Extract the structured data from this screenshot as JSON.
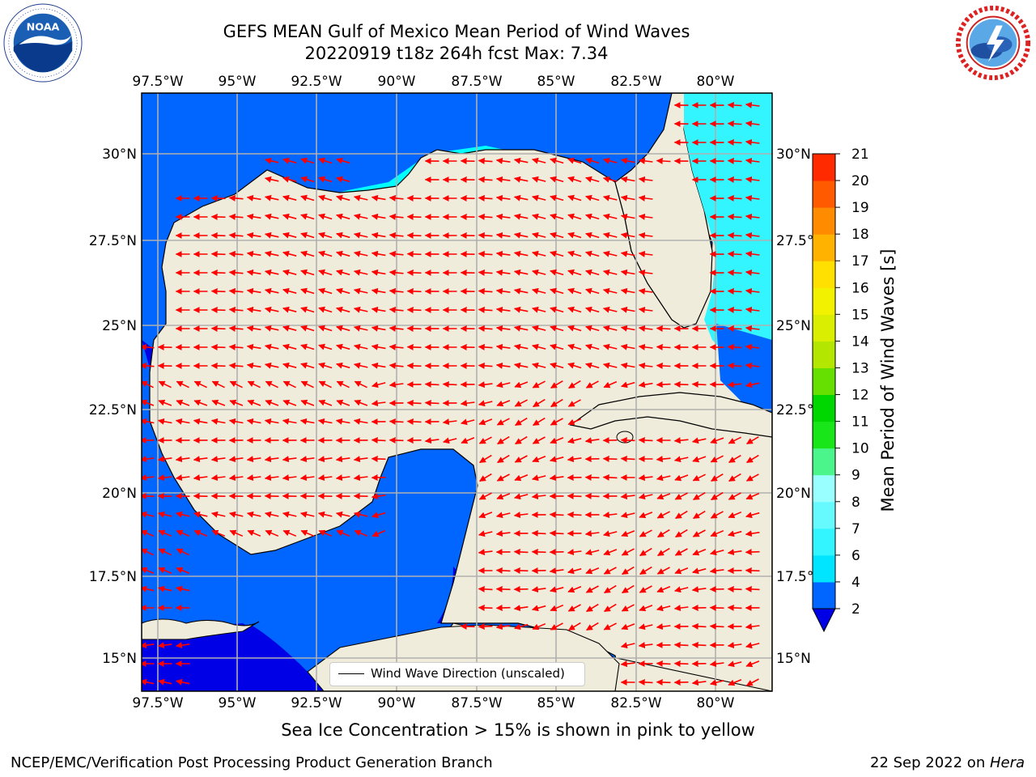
{
  "header": {
    "title_line1": "GEFS MEAN Gulf of Mexico Mean Period of Wind Waves",
    "title_line2": "20220919 t18z 264h fcst   Max: 7.34"
  },
  "logos": {
    "left": "noaa-logo",
    "right": "national-weather-service-logo"
  },
  "map": {
    "x_ticks": [
      "97.5°W",
      "95°W",
      "92.5°W",
      "90°W",
      "87.5°W",
      "85°W",
      "82.5°W",
      "80°W"
    ],
    "y_ticks": [
      "30°N",
      "27.5°N",
      "25°N",
      "22.5°N",
      "20°N",
      "17.5°N",
      "15°N"
    ],
    "legend_label": "Wind Wave Direction (unscaled)",
    "lon_range": [
      -98,
      -78
    ],
    "lat_range": [
      14,
      31.5
    ],
    "land_color": "#efecdb",
    "arrow_color": "#ff0000"
  },
  "colorbar": {
    "label": "Mean Period of Wind Waves [s]",
    "levels": [
      "2",
      "4",
      "6",
      "7",
      "8",
      "9",
      "10",
      "11",
      "12",
      "13",
      "14",
      "15",
      "16",
      "17",
      "18",
      "19",
      "20",
      "21"
    ],
    "colors": [
      "#0066ff",
      "#00e5ff",
      "#33f5ff",
      "#66faff",
      "#99ffff",
      "#4cf58c",
      "#19e619",
      "#00d600",
      "#66e000",
      "#b3e600",
      "#d9ee00",
      "#f2f200",
      "#ffe000",
      "#ffb300",
      "#ff8c00",
      "#ff5a00",
      "#ff2a00"
    ],
    "extend_color": "#0000e6"
  },
  "footer": {
    "sea_ice_note": "Sea Ice Concentration > 15% is shown in pink to yellow",
    "branch": "NCEP/EMC/Verification Post Processing Product Generation Branch",
    "date": "22 Sep 2022 on ",
    "host": "Hera"
  }
}
